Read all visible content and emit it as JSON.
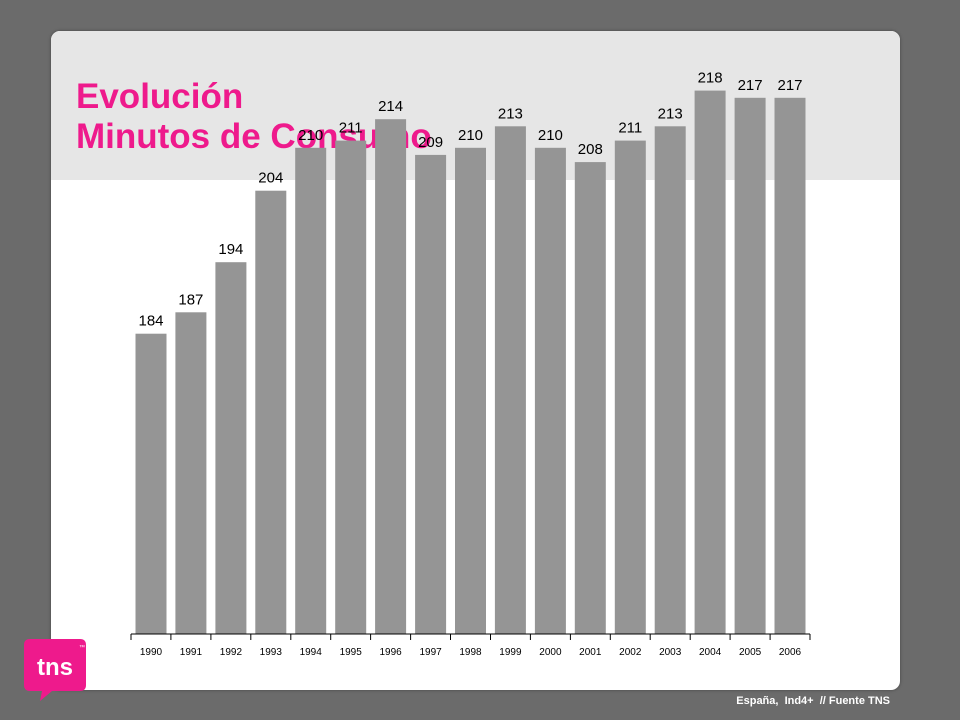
{
  "header": {
    "title_line1": "Evolución",
    "title_line2": "Minutos de Consumo"
  },
  "logo": {
    "text": "tns",
    "tm": "™"
  },
  "footer": {
    "text": "España,  Ind4+  // Fuente TNS"
  },
  "colors": {
    "accent": "#ee1a8c",
    "bar": "#959595",
    "background": "#6b6b6b",
    "header": "#e6e6e6"
  },
  "chart_data": {
    "type": "bar",
    "categories": [
      "1990",
      "1991",
      "1992",
      "1993",
      "1994",
      "1995",
      "1996",
      "1997",
      "1998",
      "1999",
      "2000",
      "2001",
      "2002",
      "2003",
      "2004",
      "2005",
      "2006"
    ],
    "values": [
      184,
      187,
      194,
      204,
      210,
      211,
      214,
      209,
      210,
      213,
      210,
      208,
      211,
      213,
      218,
      217,
      217
    ],
    "title": "",
    "xlabel": "",
    "ylabel": "",
    "ylim": [
      142,
      218
    ],
    "grid": false,
    "data_labels": true
  }
}
